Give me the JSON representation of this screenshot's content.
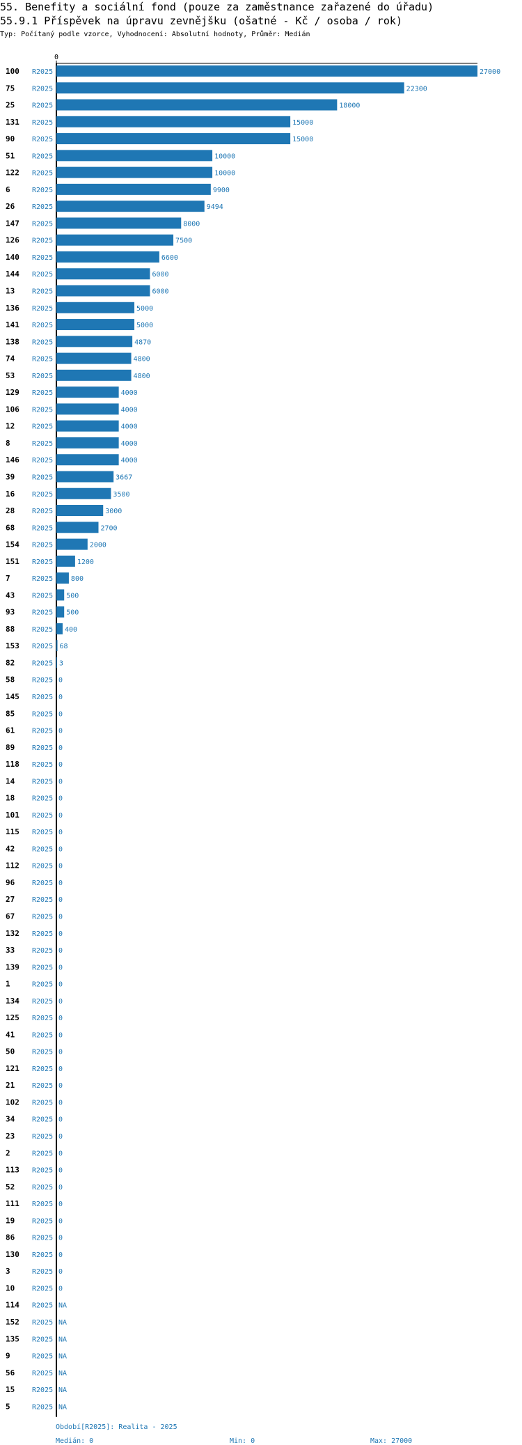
{
  "header": {
    "title": "55. Benefity a sociální fond (pouze za zaměstnance zařazené do úřadu)",
    "subtitle": "55.9.1 Příspěvek na úpravu zevnějšku (ošatné - Kč / osoba / rok)",
    "info": "Typ: Počítaný podle vzorce, Vyhodnocení: Absolutní hodnoty, Průměr: Medián"
  },
  "colors": {
    "bar": "#1f77b4",
    "text": "#000000",
    "value_text": "#1f77b4"
  },
  "chart_data": {
    "type": "bar",
    "orientation": "horizontal",
    "axis_tick_label": "0",
    "xlim": [
      0,
      27000
    ],
    "series_label": "R2025",
    "categories": [
      "100",
      "75",
      "25",
      "131",
      "90",
      "51",
      "122",
      "6",
      "26",
      "147",
      "126",
      "140",
      "144",
      "13",
      "136",
      "141",
      "138",
      "74",
      "53",
      "129",
      "106",
      "12",
      "8",
      "146",
      "39",
      "16",
      "28",
      "68",
      "154",
      "151",
      "7",
      "43",
      "93",
      "88",
      "153",
      "82",
      "58",
      "145",
      "85",
      "61",
      "89",
      "118",
      "14",
      "18",
      "101",
      "115",
      "42",
      "112",
      "96",
      "27",
      "67",
      "132",
      "33",
      "139",
      "1",
      "134",
      "125",
      "41",
      "50",
      "121",
      "21",
      "102",
      "34",
      "23",
      "2",
      "113",
      "52",
      "111",
      "19",
      "86",
      "130",
      "3",
      "10",
      "114",
      "152",
      "135",
      "9",
      "56",
      "15",
      "5"
    ],
    "values": [
      27000,
      22300,
      18000,
      15000,
      15000,
      10000,
      10000,
      9900,
      9494,
      8000,
      7500,
      6600,
      6000,
      6000,
      5000,
      5000,
      4870,
      4800,
      4800,
      4000,
      4000,
      4000,
      4000,
      4000,
      3667,
      3500,
      3000,
      2700,
      2000,
      1200,
      800,
      500,
      500,
      400,
      68,
      3,
      0,
      0,
      0,
      0,
      0,
      0,
      0,
      0,
      0,
      0,
      0,
      0,
      0,
      0,
      0,
      0,
      0,
      0,
      0,
      0,
      0,
      0,
      0,
      0,
      0,
      0,
      0,
      0,
      0,
      0,
      0,
      0,
      0,
      0,
      0,
      0,
      0,
      null,
      null,
      null,
      null,
      null,
      null,
      null
    ],
    "value_labels": [
      "27000",
      "22300",
      "18000",
      "15000",
      "15000",
      "10000",
      "10000",
      "9900",
      "9494",
      "8000",
      "7500",
      "6600",
      "6000",
      "6000",
      "5000",
      "5000",
      "4870",
      "4800",
      "4800",
      "4000",
      "4000",
      "4000",
      "4000",
      "4000",
      "3667",
      "3500",
      "3000",
      "2700",
      "2000",
      "1200",
      "800",
      "500",
      "500",
      "400",
      "68",
      "3",
      "0",
      "0",
      "0",
      "0",
      "0",
      "0",
      "0",
      "0",
      "0",
      "0",
      "0",
      "0",
      "0",
      "0",
      "0",
      "0",
      "0",
      "0",
      "0",
      "0",
      "0",
      "0",
      "0",
      "0",
      "0",
      "0",
      "0",
      "0",
      "0",
      "0",
      "0",
      "0",
      "0",
      "0",
      "0",
      "0",
      "0",
      "NA",
      "NA",
      "NA",
      "NA",
      "NA",
      "NA",
      "NA"
    ]
  },
  "footer": {
    "period": "Období[R2025]: Realita - 2025",
    "median": "Medián: 0",
    "min": "Min: 0",
    "max": "Max: 27000"
  }
}
